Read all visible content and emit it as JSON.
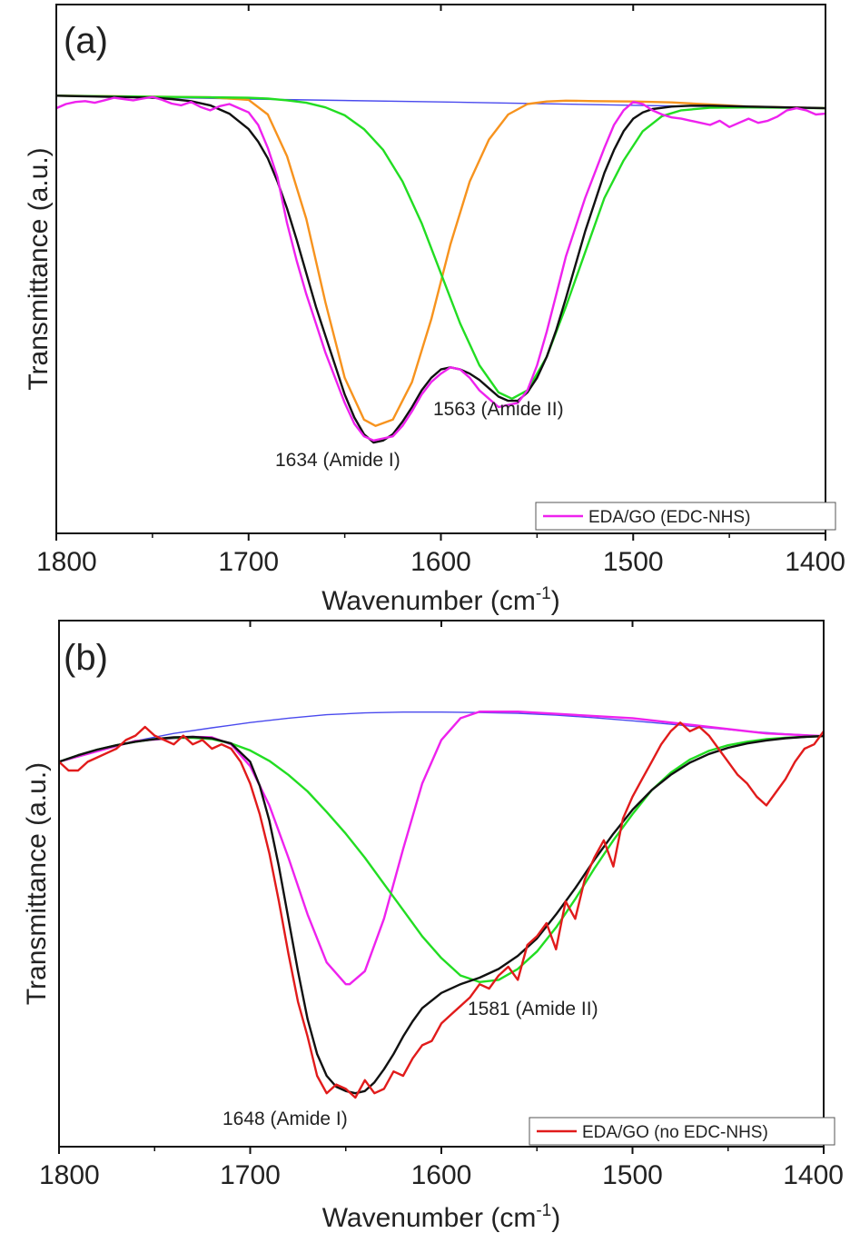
{
  "chart_data": [
    {
      "type": "line",
      "panel_label": "(a)",
      "xlabel": "Wavenumber (cm⁻¹)",
      "xlabel_main": "Wavenumber ",
      "xlabel_unit": "(cm",
      "xlabel_sup": "-1",
      "xlabel_close": ")",
      "ylabel": "Transmittance (a.u.)",
      "xlim": [
        1800,
        1400
      ],
      "x_ticks": [
        1800,
        1700,
        1600,
        1500,
        1400
      ],
      "y_ticks_labeled": false,
      "ylim": [
        0,
        1
      ],
      "legend": {
        "position": "bottom-right",
        "entries": [
          {
            "label": "EDA/GO (EDC-NHS)",
            "color": "#ee22ee"
          }
        ]
      },
      "annotations": [
        {
          "text": "1634 (Amide I)",
          "x": 1634
        },
        {
          "text": "1563 (Amide II)",
          "x": 1563
        }
      ],
      "series": [
        {
          "color": "#ee22ee",
          "role": "measured",
          "x": [
            1800,
            1795,
            1790,
            1785,
            1780,
            1775,
            1770,
            1765,
            1760,
            1755,
            1750,
            1745,
            1740,
            1735,
            1730,
            1725,
            1720,
            1715,
            1710,
            1705,
            1700,
            1695,
            1690,
            1685,
            1680,
            1675,
            1670,
            1665,
            1660,
            1655,
            1650,
            1645,
            1640,
            1635,
            1630,
            1625,
            1620,
            1615,
            1610,
            1605,
            1600,
            1595,
            1590,
            1585,
            1580,
            1575,
            1570,
            1565,
            1560,
            1555,
            1550,
            1545,
            1540,
            1535,
            1530,
            1525,
            1520,
            1515,
            1510,
            1505,
            1500,
            1495,
            1490,
            1485,
            1480,
            1475,
            1470,
            1465,
            1460,
            1455,
            1450,
            1445,
            1440,
            1435,
            1430,
            1425,
            1420,
            1415,
            1410,
            1405,
            1400
          ],
          "y": [
            0.915,
            0.925,
            0.93,
            0.932,
            0.928,
            0.934,
            0.94,
            0.937,
            0.934,
            0.938,
            0.942,
            0.935,
            0.926,
            0.922,
            0.93,
            0.918,
            0.91,
            0.92,
            0.925,
            0.915,
            0.905,
            0.875,
            0.82,
            0.75,
            0.64,
            0.55,
            0.47,
            0.4,
            0.33,
            0.27,
            0.21,
            0.16,
            0.13,
            0.12,
            0.125,
            0.13,
            0.155,
            0.19,
            0.23,
            0.26,
            0.28,
            0.295,
            0.29,
            0.27,
            0.24,
            0.22,
            0.2,
            0.205,
            0.21,
            0.24,
            0.3,
            0.38,
            0.47,
            0.56,
            0.63,
            0.7,
            0.76,
            0.82,
            0.875,
            0.91,
            0.93,
            0.925,
            0.91,
            0.9,
            0.893,
            0.89,
            0.885,
            0.88,
            0.875,
            0.885,
            0.87,
            0.88,
            0.89,
            0.88,
            0.885,
            0.895,
            0.91,
            0.915,
            0.91,
            0.9,
            0.902
          ]
        },
        {
          "color": "#111111",
          "role": "cumulative fit",
          "x": [
            1800,
            1790,
            1780,
            1770,
            1760,
            1750,
            1740,
            1730,
            1720,
            1710,
            1700,
            1695,
            1690,
            1685,
            1680,
            1675,
            1670,
            1665,
            1660,
            1655,
            1650,
            1645,
            1640,
            1635,
            1630,
            1625,
            1620,
            1615,
            1610,
            1605,
            1600,
            1595,
            1590,
            1585,
            1580,
            1575,
            1570,
            1565,
            1560,
            1555,
            1550,
            1545,
            1540,
            1535,
            1530,
            1525,
            1520,
            1515,
            1510,
            1505,
            1500,
            1495,
            1490,
            1480,
            1470,
            1460,
            1450,
            1440,
            1430,
            1420,
            1410,
            1400
          ],
          "y": [
            0.945,
            0.944,
            0.943,
            0.942,
            0.941,
            0.94,
            0.937,
            0.932,
            0.922,
            0.902,
            0.865,
            0.835,
            0.795,
            0.74,
            0.675,
            0.6,
            0.52,
            0.44,
            0.37,
            0.3,
            0.23,
            0.175,
            0.135,
            0.115,
            0.12,
            0.135,
            0.165,
            0.2,
            0.24,
            0.27,
            0.29,
            0.295,
            0.29,
            0.28,
            0.265,
            0.245,
            0.225,
            0.215,
            0.215,
            0.235,
            0.27,
            0.32,
            0.385,
            0.46,
            0.54,
            0.62,
            0.69,
            0.76,
            0.815,
            0.86,
            0.89,
            0.905,
            0.913,
            0.919,
            0.921,
            0.921,
            0.92,
            0.919,
            0.918,
            0.917,
            0.916,
            0.915
          ]
        },
        {
          "color": "#22dd22",
          "role": "fitted peak (Amide II)",
          "x": [
            1800,
            1780,
            1760,
            1740,
            1720,
            1700,
            1690,
            1680,
            1670,
            1660,
            1650,
            1640,
            1630,
            1620,
            1610,
            1600,
            1590,
            1580,
            1570,
            1563,
            1555,
            1545,
            1535,
            1525,
            1515,
            1505,
            1495,
            1485,
            1475,
            1460,
            1440,
            1420,
            1400
          ],
          "y": [
            0.945,
            0.944,
            0.943,
            0.942,
            0.941,
            0.94,
            0.938,
            0.934,
            0.928,
            0.917,
            0.898,
            0.865,
            0.815,
            0.74,
            0.64,
            0.52,
            0.4,
            0.3,
            0.235,
            0.22,
            0.24,
            0.32,
            0.44,
            0.57,
            0.7,
            0.79,
            0.86,
            0.896,
            0.91,
            0.916,
            0.917,
            0.916,
            0.915
          ]
        },
        {
          "color": "#f7931e",
          "role": "fitted peak (Amide I)",
          "x": [
            1800,
            1760,
            1720,
            1700,
            1690,
            1680,
            1670,
            1660,
            1650,
            1640,
            1634,
            1625,
            1615,
            1605,
            1595,
            1585,
            1575,
            1565,
            1555,
            1545,
            1535,
            1520,
            1500,
            1480,
            1460,
            1440,
            1420,
            1400
          ],
          "y": [
            0.945,
            0.943,
            0.941,
            0.935,
            0.9,
            0.8,
            0.65,
            0.45,
            0.27,
            0.17,
            0.155,
            0.17,
            0.26,
            0.41,
            0.59,
            0.74,
            0.84,
            0.9,
            0.925,
            0.931,
            0.933,
            0.932,
            0.931,
            0.929,
            0.924,
            0.919,
            0.917,
            0.915
          ]
        },
        {
          "color": "#4a4aee",
          "role": "baseline",
          "x": [
            1800,
            1700,
            1600,
            1500,
            1400
          ],
          "y": [
            0.945,
            0.937,
            0.93,
            0.922,
            0.915
          ]
        }
      ]
    },
    {
      "type": "line",
      "panel_label": "(b)",
      "xlabel": "Wavenumber (cm⁻¹)",
      "xlabel_main": "Wavenumber ",
      "xlabel_unit": "(cm",
      "xlabel_sup": "-1",
      "xlabel_close": ")",
      "ylabel": "Transmittance (a.u.)",
      "xlim": [
        1800,
        1400
      ],
      "x_ticks": [
        1800,
        1700,
        1600,
        1500,
        1400
      ],
      "y_ticks_labeled": false,
      "ylim": [
        0,
        1
      ],
      "legend": {
        "position": "bottom-right",
        "entries": [
          {
            "label": "EDA/GO (no EDC-NHS)",
            "color": "#e11b1b"
          }
        ]
      },
      "annotations": [
        {
          "text": "1648 (Amide I)",
          "x": 1648
        },
        {
          "text": "1581 (Amide II)",
          "x": 1581
        }
      ],
      "series": [
        {
          "color": "#e11b1b",
          "role": "measured",
          "x": [
            1800,
            1795,
            1790,
            1785,
            1780,
            1775,
            1770,
            1765,
            1760,
            1755,
            1750,
            1745,
            1740,
            1735,
            1730,
            1725,
            1720,
            1715,
            1710,
            1705,
            1700,
            1695,
            1690,
            1685,
            1680,
            1675,
            1670,
            1665,
            1660,
            1655,
            1650,
            1645,
            1640,
            1635,
            1630,
            1625,
            1620,
            1615,
            1610,
            1605,
            1600,
            1595,
            1590,
            1585,
            1580,
            1575,
            1570,
            1565,
            1560,
            1555,
            1550,
            1545,
            1540,
            1535,
            1530,
            1525,
            1520,
            1515,
            1510,
            1505,
            1500,
            1495,
            1490,
            1485,
            1480,
            1475,
            1470,
            1465,
            1460,
            1455,
            1450,
            1445,
            1440,
            1435,
            1430,
            1425,
            1420,
            1415,
            1410,
            1405,
            1400
          ],
          "y": [
            0.82,
            0.8,
            0.8,
            0.82,
            0.83,
            0.84,
            0.85,
            0.87,
            0.88,
            0.9,
            0.88,
            0.87,
            0.86,
            0.88,
            0.86,
            0.87,
            0.85,
            0.86,
            0.85,
            0.82,
            0.77,
            0.7,
            0.61,
            0.5,
            0.38,
            0.27,
            0.19,
            0.1,
            0.06,
            0.08,
            0.07,
            0.05,
            0.09,
            0.06,
            0.07,
            0.11,
            0.1,
            0.14,
            0.17,
            0.18,
            0.22,
            0.24,
            0.26,
            0.28,
            0.31,
            0.3,
            0.33,
            0.35,
            0.32,
            0.4,
            0.42,
            0.45,
            0.39,
            0.5,
            0.46,
            0.55,
            0.6,
            0.64,
            0.58,
            0.69,
            0.74,
            0.78,
            0.82,
            0.86,
            0.89,
            0.91,
            0.89,
            0.9,
            0.88,
            0.85,
            0.82,
            0.79,
            0.77,
            0.74,
            0.72,
            0.75,
            0.78,
            0.82,
            0.85,
            0.86,
            0.89
          ]
        },
        {
          "color": "#111111",
          "role": "cumulative fit",
          "x": [
            1800,
            1790,
            1780,
            1770,
            1760,
            1750,
            1740,
            1730,
            1720,
            1710,
            1700,
            1695,
            1690,
            1685,
            1680,
            1675,
            1670,
            1665,
            1660,
            1655,
            1650,
            1645,
            1640,
            1635,
            1630,
            1625,
            1620,
            1615,
            1610,
            1600,
            1590,
            1580,
            1570,
            1560,
            1550,
            1540,
            1530,
            1520,
            1510,
            1500,
            1490,
            1480,
            1470,
            1460,
            1450,
            1440,
            1430,
            1420,
            1410,
            1400
          ],
          "y": [
            0.82,
            0.835,
            0.848,
            0.858,
            0.866,
            0.872,
            0.876,
            0.877,
            0.874,
            0.862,
            0.82,
            0.765,
            0.685,
            0.58,
            0.46,
            0.34,
            0.23,
            0.15,
            0.1,
            0.075,
            0.065,
            0.06,
            0.065,
            0.085,
            0.115,
            0.15,
            0.19,
            0.225,
            0.255,
            0.29,
            0.31,
            0.325,
            0.345,
            0.375,
            0.415,
            0.47,
            0.53,
            0.595,
            0.655,
            0.71,
            0.755,
            0.79,
            0.818,
            0.838,
            0.852,
            0.862,
            0.869,
            0.874,
            0.877,
            0.879
          ]
        },
        {
          "color": "#22dd22",
          "role": "fitted peak (Amide II)",
          "x": [
            1800,
            1790,
            1780,
            1770,
            1760,
            1750,
            1740,
            1730,
            1720,
            1710,
            1700,
            1690,
            1680,
            1670,
            1660,
            1650,
            1640,
            1630,
            1620,
            1610,
            1600,
            1590,
            1580,
            1570,
            1560,
            1550,
            1540,
            1530,
            1520,
            1510,
            1500,
            1490,
            1480,
            1470,
            1460,
            1450,
            1440,
            1430,
            1420,
            1410,
            1400
          ],
          "y": [
            0.82,
            0.835,
            0.848,
            0.858,
            0.866,
            0.872,
            0.875,
            0.875,
            0.872,
            0.862,
            0.846,
            0.822,
            0.79,
            0.752,
            0.705,
            0.655,
            0.6,
            0.54,
            0.48,
            0.42,
            0.37,
            0.33,
            0.315,
            0.32,
            0.345,
            0.385,
            0.44,
            0.505,
            0.575,
            0.64,
            0.7,
            0.755,
            0.795,
            0.825,
            0.845,
            0.858,
            0.866,
            0.872,
            0.875,
            0.877,
            0.879
          ]
        },
        {
          "color": "#ee22ee",
          "role": "fitted peak (Amide I)",
          "x": [
            1800,
            1760,
            1730,
            1720,
            1710,
            1700,
            1690,
            1680,
            1670,
            1660,
            1650,
            1648,
            1640,
            1630,
            1620,
            1610,
            1600,
            1590,
            1580,
            1560,
            1540,
            1500,
            1460,
            1430,
            1400
          ],
          "y": [
            0.82,
            0.868,
            0.877,
            0.876,
            0.86,
            0.81,
            0.72,
            0.6,
            0.47,
            0.36,
            0.31,
            0.31,
            0.34,
            0.46,
            0.62,
            0.77,
            0.87,
            0.92,
            0.935,
            0.935,
            0.93,
            0.92,
            0.9,
            0.885,
            0.879
          ]
        },
        {
          "color": "#4a4aee",
          "role": "baseline",
          "x": [
            1800,
            1780,
            1760,
            1740,
            1720,
            1700,
            1680,
            1660,
            1640,
            1620,
            1600,
            1580,
            1560,
            1540,
            1520,
            1500,
            1480,
            1460,
            1440,
            1420,
            1400
          ],
          "y": [
            0.82,
            0.848,
            0.868,
            0.885,
            0.898,
            0.91,
            0.92,
            0.928,
            0.932,
            0.934,
            0.934,
            0.933,
            0.931,
            0.927,
            0.921,
            0.914,
            0.906,
            0.898,
            0.89,
            0.884,
            0.879
          ]
        }
      ]
    }
  ]
}
